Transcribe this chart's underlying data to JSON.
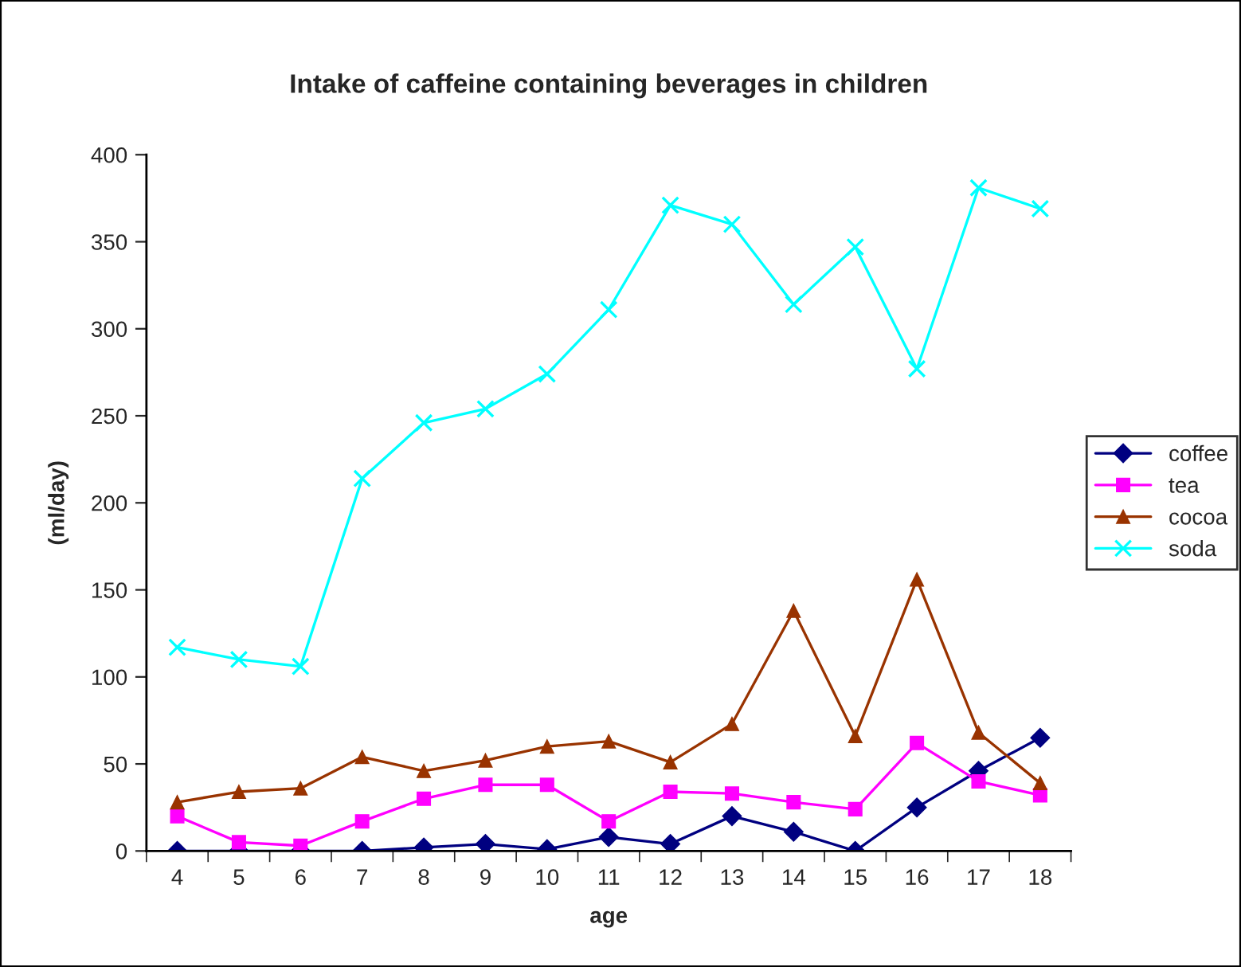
{
  "chart_data": {
    "type": "line",
    "title": "Intake of caffeine containing beverages in children",
    "xlabel": "age",
    "ylabel": "(ml/day)",
    "categories": [
      "4",
      "5",
      "6",
      "7",
      "8",
      "9",
      "10",
      "11",
      "12",
      "13",
      "14",
      "15",
      "16",
      "17",
      "18"
    ],
    "ylim": [
      0,
      400
    ],
    "yticks": [
      0,
      50,
      100,
      150,
      200,
      250,
      300,
      350,
      400
    ],
    "grid": false,
    "legend": "right",
    "series": [
      {
        "name": "coffee",
        "color": "#000080",
        "marker": "diamond",
        "values": [
          0,
          0,
          0,
          0,
          2,
          4,
          1,
          8,
          4,
          20,
          11,
          0,
          25,
          46,
          65
        ]
      },
      {
        "name": "tea",
        "color": "#ff00ff",
        "marker": "square",
        "values": [
          20,
          5,
          3,
          17,
          30,
          38,
          38,
          17,
          34,
          33,
          28,
          24,
          62,
          40,
          32
        ]
      },
      {
        "name": "cocoa",
        "color": "#993300",
        "marker": "triangle",
        "values": [
          28,
          34,
          36,
          54,
          46,
          52,
          60,
          63,
          51,
          73,
          138,
          66,
          156,
          68,
          39
        ]
      },
      {
        "name": "soda",
        "color": "#00ffff",
        "marker": "cross",
        "values": [
          117,
          110,
          106,
          214,
          246,
          254,
          274,
          311,
          371,
          360,
          314,
          347,
          277,
          381,
          369
        ]
      }
    ]
  }
}
